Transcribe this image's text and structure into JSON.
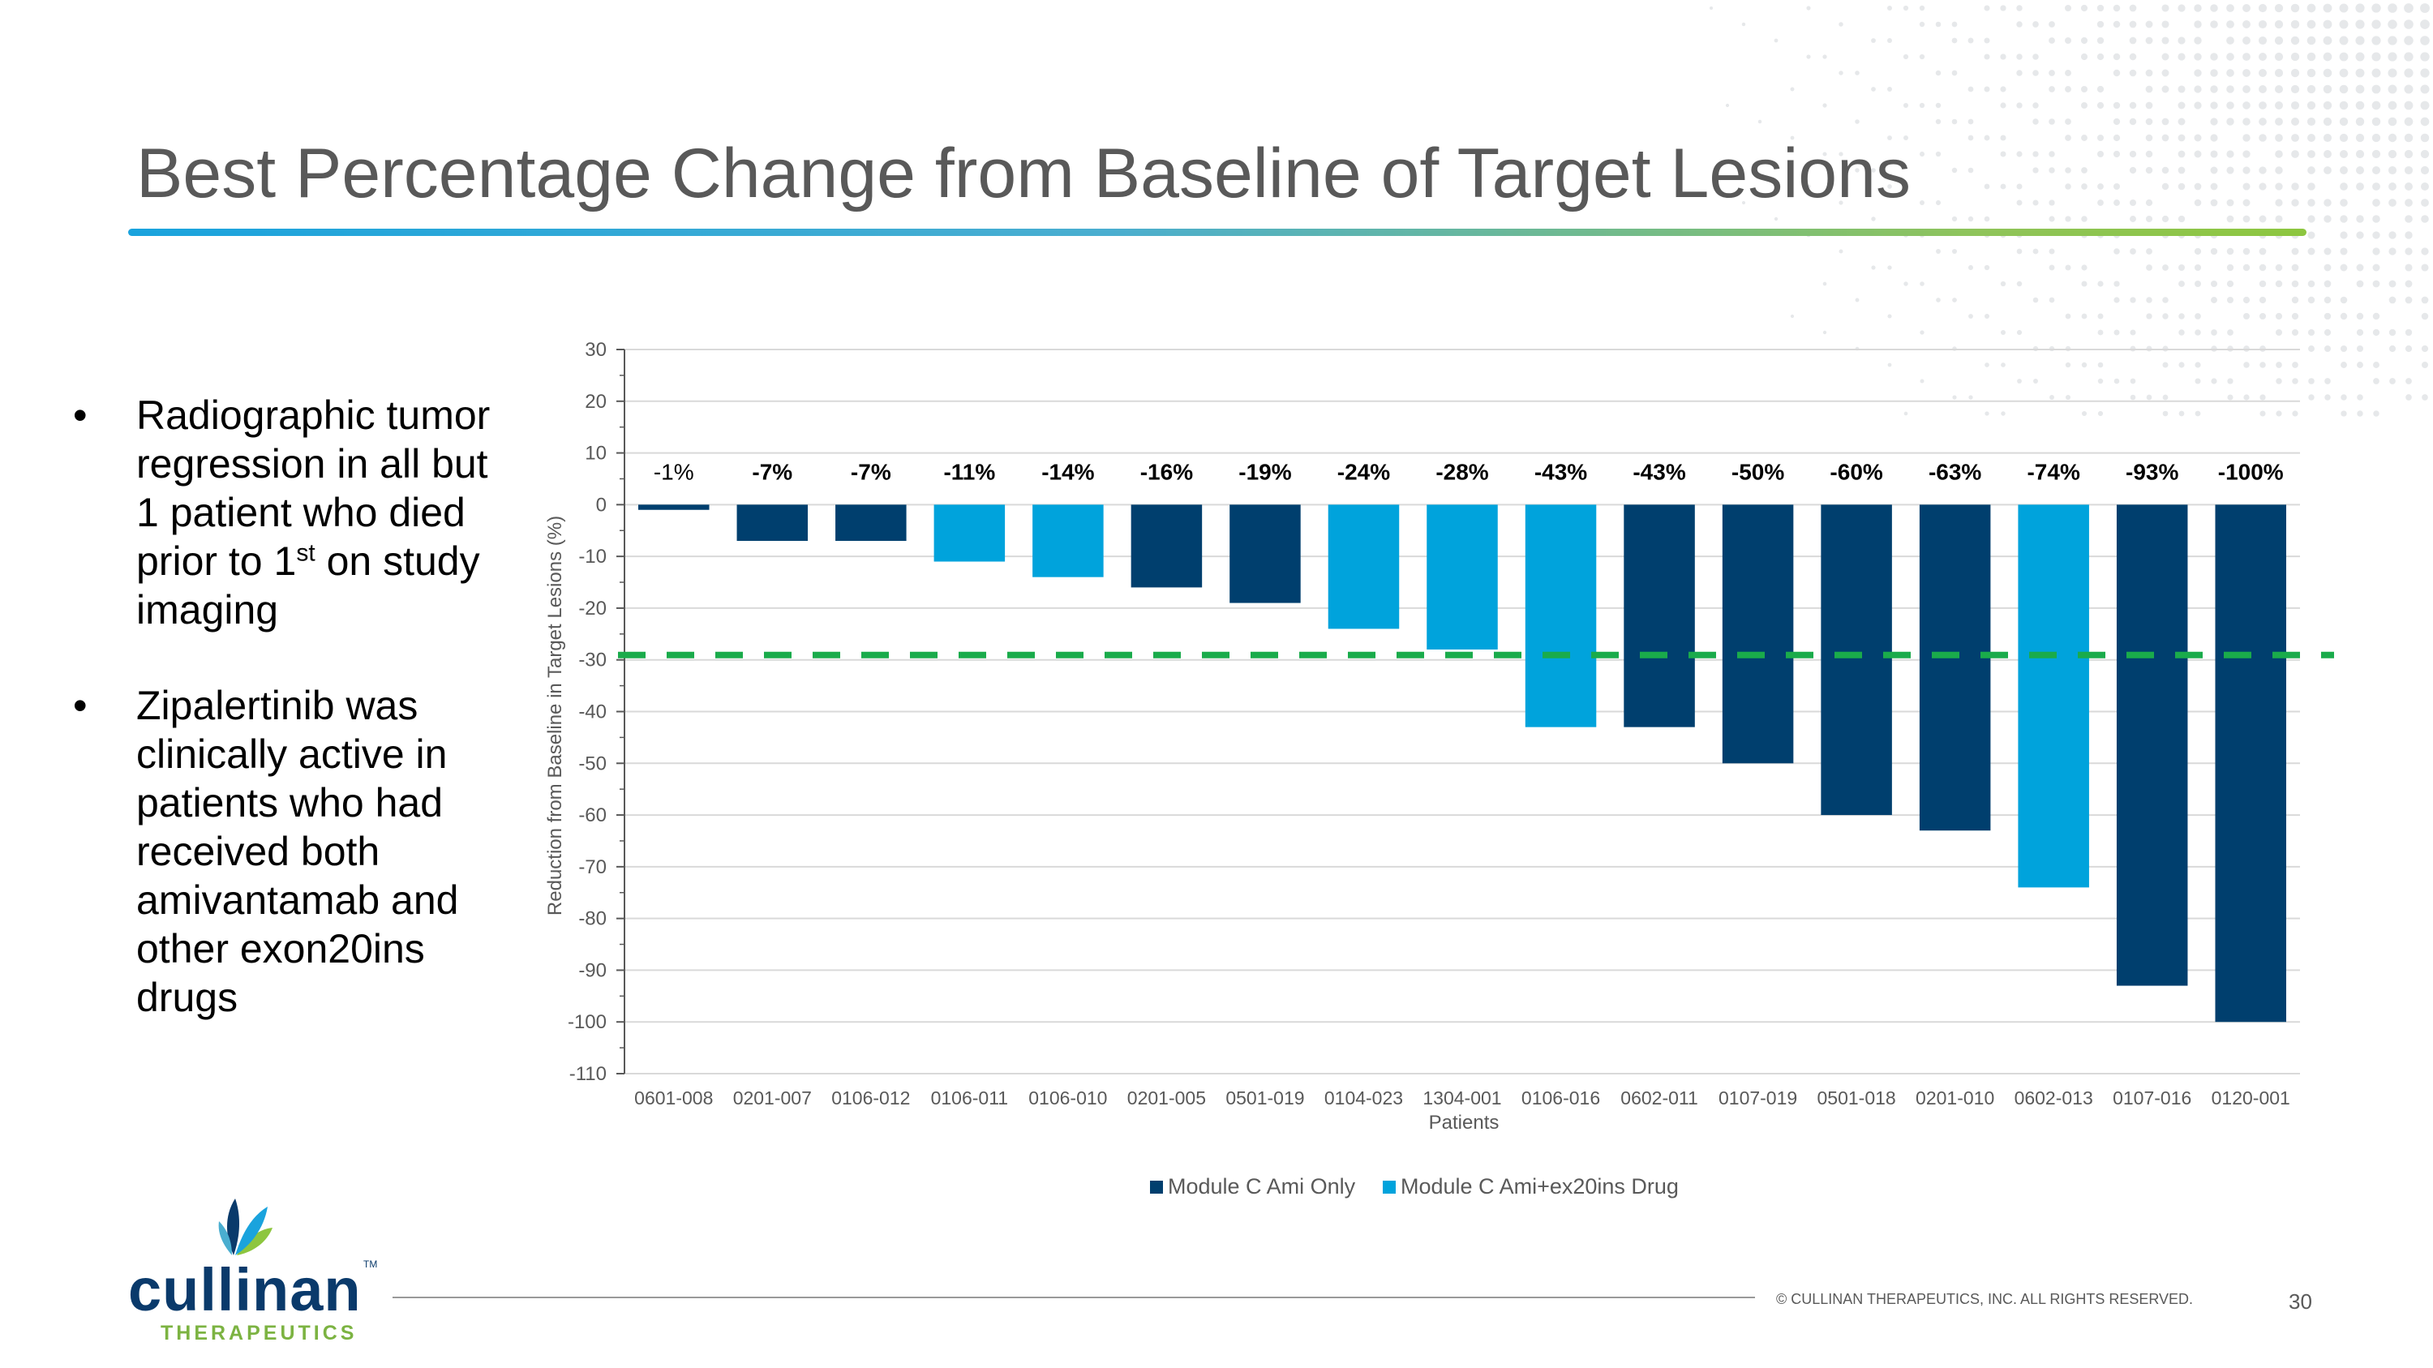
{
  "slide": {
    "title": "Best Percentage Change from Baseline of Target Lesions",
    "page_number": "30",
    "copyright": "© CULLINAN THERAPEUTICS, INC. ALL RIGHTS RESERVED."
  },
  "bullets": [
    {
      "text_before": "Radiographic tumor regression in all but 1 patient who died prior to 1",
      "sup": "st",
      "text_after": " on study imaging"
    },
    {
      "text_before": "Zipalertinib was clinically active in patients who had received both amivantamab and other exon20ins drugs",
      "sup": "",
      "text_after": ""
    }
  ],
  "logo": {
    "name": "cullinan",
    "tm": "TM",
    "subtitle": "THERAPEUTICS"
  },
  "colors": {
    "dark_series": "#003f6e",
    "light_series": "#00a3dc",
    "threshold_line": "#1aab4b",
    "title_text": "#595959"
  },
  "chart_data": {
    "type": "bar",
    "title": "",
    "xlabel": "Patients",
    "ylabel": "Reduction from Baseline in Target Lesions (%)",
    "ylim": [
      -110,
      30
    ],
    "yticks": [
      30,
      20,
      10,
      0,
      -10,
      -20,
      -30,
      -40,
      -50,
      -60,
      -70,
      -80,
      -90,
      -100,
      -110
    ],
    "grid": true,
    "legend_position": "bottom-center",
    "threshold": -30,
    "categories": [
      "0601-008",
      "0201-007",
      "0106-012",
      "0106-011",
      "0106-010",
      "0201-005",
      "0501-019",
      "0104-023",
      "1304-001",
      "0106-016",
      "0602-011",
      "0107-019",
      "0501-018",
      "0201-010",
      "0602-013",
      "0107-016",
      "0120-001"
    ],
    "values": [
      -1,
      -7,
      -7,
      -11,
      -14,
      -16,
      -19,
      -24,
      -28,
      -43,
      -43,
      -50,
      -60,
      -63,
      -74,
      -93,
      -100
    ],
    "labels": [
      "-1%",
      "-7%",
      "-7%",
      "-11%",
      "-14%",
      "-16%",
      "-19%",
      "-24%",
      "-28%",
      "-43%",
      "-43%",
      "-50%",
      "-60%",
      "-63%",
      "-74%",
      "-93%",
      "-100%"
    ],
    "series_assignment": [
      0,
      0,
      0,
      1,
      1,
      0,
      0,
      1,
      1,
      1,
      0,
      0,
      0,
      0,
      1,
      0,
      0
    ],
    "series": [
      {
        "name": "Module C Ami Only",
        "color": "#003f6e"
      },
      {
        "name": "Module C Ami+ex20ins Drug",
        "color": "#00a3dc"
      }
    ]
  }
}
